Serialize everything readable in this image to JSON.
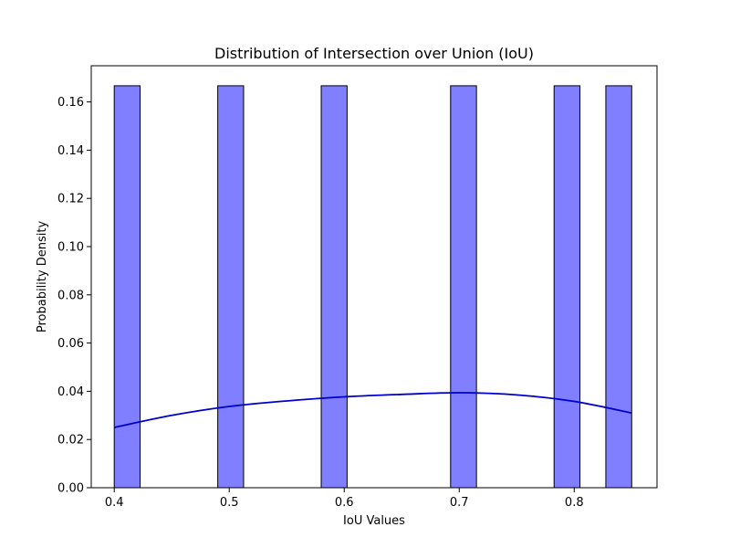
{
  "chart_data": {
    "type": "bar",
    "subtype": "histogram-with-kde",
    "title": "Distribution of Intersection over Union (IoU)",
    "xlabel": "IoU Values",
    "ylabel": "Probability Density",
    "xlim": [
      0.38,
      0.872
    ],
    "ylim": [
      0,
      0.175
    ],
    "xticks": [
      0.4,
      0.5,
      0.6,
      0.7,
      0.8
    ],
    "xtick_labels": [
      "0.4",
      "0.5",
      "0.6",
      "0.7",
      "0.8"
    ],
    "yticks": [
      0,
      0.02,
      0.04,
      0.06,
      0.08,
      0.1,
      0.12,
      0.14,
      0.16
    ],
    "ytick_labels": [
      "0.00",
      "0.02",
      "0.04",
      "0.06",
      "0.08",
      "0.10",
      "0.12",
      "0.14",
      "0.16"
    ],
    "bins": [
      {
        "x0": 0.4,
        "x1": 0.4225,
        "density": 0.1667
      },
      {
        "x0": 0.49,
        "x1": 0.5125,
        "density": 0.1667
      },
      {
        "x0": 0.58,
        "x1": 0.6025,
        "density": 0.1667
      },
      {
        "x0": 0.6925,
        "x1": 0.715,
        "density": 0.1667
      },
      {
        "x0": 0.7825,
        "x1": 0.805,
        "density": 0.1667
      },
      {
        "x0": 0.8275,
        "x1": 0.85,
        "density": 0.1667
      }
    ],
    "kde": {
      "x": [
        0.4,
        0.45,
        0.5,
        0.55,
        0.6,
        0.65,
        0.7,
        0.75,
        0.8,
        0.85
      ],
      "y": [
        0.025,
        0.03,
        0.0337,
        0.036,
        0.0377,
        0.0387,
        0.0394,
        0.0385,
        0.0358,
        0.031
      ]
    },
    "colors": {
      "bar_fill": "#7f7fff",
      "bar_edge": "#000000",
      "kde_line": "#0000cc"
    },
    "grid": false,
    "legend": "none"
  }
}
